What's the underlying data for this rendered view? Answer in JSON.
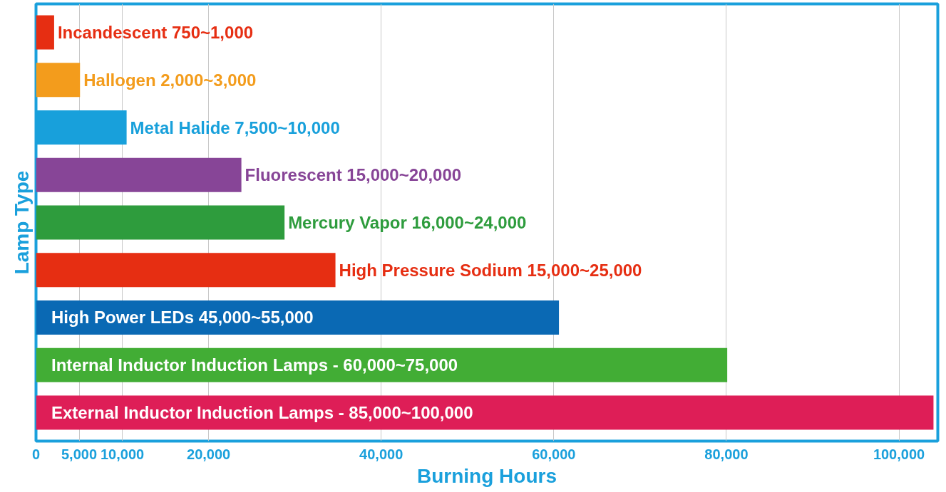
{
  "chart_data": {
    "type": "bar",
    "orientation": "horizontal",
    "xlabel": "Burning Hours",
    "ylabel": "Lamp Type",
    "categories": [
      "Incandescent 750~1,000",
      "Hallogen 2,000~3,000",
      "Metal Halide 7,500~10,000",
      "Fluorescent 15,000~20,000",
      "Mercury Vapor 16,000~24,000",
      "High Pressure Sodium 15,000~25,000",
      "High Power LEDs 45,000~55,000",
      "Internal Inductor Induction Lamps -  60,000~75,000",
      "External Inductor Induction Lamps -  85,000~100,000"
    ],
    "values": [
      2100,
      5100,
      10500,
      23800,
      28800,
      34700,
      60600,
      80100,
      104000
    ],
    "colors": [
      "#e62e12",
      "#f39c1c",
      "#18a0db",
      "#874597",
      "#2e9c3d",
      "#e62e12",
      "#0a69b4",
      "#42ad35",
      "#de1e57"
    ],
    "xlim": [
      0,
      104500
    ],
    "xticks": [
      0,
      {
        "value": 5000,
        "label": "5,000"
      },
      {
        "value": 10000,
        "label": "10,000"
      },
      {
        "value": 20000,
        "label": "20,000"
      },
      {
        "value": 40000,
        "label": "40,000"
      },
      {
        "value": 60000,
        "label": "60,000"
      },
      {
        "value": 80000,
        "label": "80,000"
      },
      {
        "value": 100000,
        "label": "100,000"
      }
    ],
    "grid": "x",
    "tick_labels": "x"
  }
}
